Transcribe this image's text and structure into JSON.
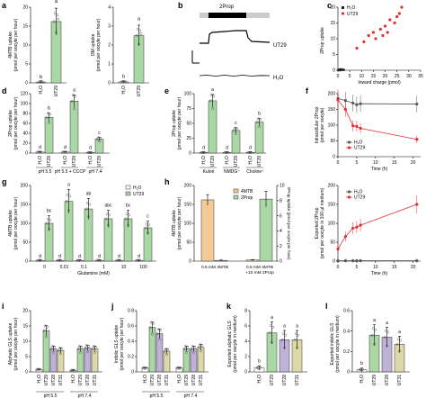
{
  "colors": {
    "h2o": "#ffffff",
    "ut29": "#a9d8a4",
    "ut31": "#ddd8a8",
    "ut28": "#bfb2d8",
    "mtb": "#f3c996",
    "prop": "#a9d8a4",
    "red": "#e03030",
    "grey": "#555555",
    "edge": "#333333"
  },
  "panels": {
    "a": {
      "letter": "a",
      "ylabel1": "4MTB uptake",
      "ylabel2": "(pmol per oocyte per hour)",
      "yticks": [
        "0",
        "5",
        "10",
        "15",
        "20"
      ],
      "xlabels": [
        "H₂O",
        "UT29"
      ],
      "sig": [
        "b",
        "a"
      ]
    },
    "a2": {
      "ylabel1": "I3M uptake",
      "ylabel2": "(pmol per oocyte per hour)",
      "yticks": [
        "0",
        "1",
        "2",
        "3",
        "4"
      ],
      "xlabels": [
        "H₂O",
        "UT29"
      ],
      "sig": [
        "b",
        "a"
      ]
    },
    "b": {
      "letter": "b",
      "stim": "2Prop",
      "trace1": "UT29",
      "trace2": "H₂O"
    },
    "c": {
      "letter": "c",
      "ylabel": "2Prop uptake",
      "xlabel": "Inward charge (pmol)",
      "yticks": [
        "0",
        "5",
        "10",
        "15",
        "20"
      ],
      "xticks": [
        "0",
        "5",
        "10",
        "15",
        "20",
        "25",
        "30",
        "35"
      ],
      "legend": [
        "H₂O",
        "UT29"
      ]
    },
    "d": {
      "letter": "d",
      "ylabel1": "2Prop uptake",
      "ylabel2": "(pmol per oocyte per hour)",
      "yticks": [
        "0",
        "20",
        "40",
        "60",
        "80",
        "100",
        "120"
      ],
      "groups": [
        "pH 5.5",
        "pH 5.5 +\nCCCP",
        "pH 7.4"
      ],
      "sig": [
        "d",
        "b",
        "d",
        "a",
        "d",
        "c"
      ]
    },
    "e": {
      "letter": "e",
      "ylabel1": "2Prop uptake",
      "ylabel2": "(pmol per oocyte per hour)",
      "yticks": [
        "0",
        "25",
        "50",
        "75",
        "100"
      ],
      "groups": [
        "Kulori",
        "NMDG⁺",
        "Choline⁺"
      ],
      "sig": [
        "d",
        "a",
        "d",
        "c",
        "d",
        "b"
      ]
    },
    "f": {
      "letter": "f",
      "ylabel1": "Intracellular 2Prop",
      "ylabel2": "(pmol per oocyte)",
      "xlabel": "Time (h)",
      "yticks": [
        "0",
        "50",
        "100",
        "150",
        "200"
      ],
      "xticks": [
        "0",
        "5",
        "10",
        "15",
        "20"
      ],
      "legend": [
        "H₂O",
        "UT29"
      ]
    },
    "g": {
      "letter": "g",
      "ylabel1": "4MTB uptake",
      "ylabel2": "(pmol per oocyte per hour)",
      "xlabel": "Glutamine (mM)",
      "yticks": [
        "0",
        "50",
        "100",
        "150",
        "200"
      ],
      "xticks": [
        "0",
        "0.01",
        "0.1",
        "1",
        "10",
        "100"
      ],
      "legend": [
        "H₂O",
        "UT29"
      ],
      "sig_top": [
        "bc",
        "a",
        "ab",
        "abc",
        "bc",
        "c"
      ],
      "sig_bot": [
        "d",
        "d",
        "d",
        "d",
        "d",
        "d"
      ]
    },
    "h": {
      "letter": "h",
      "ylabel1": "4MTB uptake",
      "ylabel2": "(pmol per oocyte per hour)",
      "ylabel_r": "2Prop uptake (pmol per oocyte per hour)",
      "yticks": [
        "0",
        "50",
        "100",
        "150",
        "200"
      ],
      "yticks_r": [
        "0",
        "2",
        "4",
        "6",
        "8",
        "10"
      ],
      "groups": [
        "0.5 mM 4MTB",
        "0.5 mM 4MTB\n+10 mM 2Prop"
      ],
      "legend": [
        "4MTB",
        "2Prop"
      ]
    },
    "h2": {
      "ylabel1": "Exported 2Prop",
      "ylabel2": "(pmol per oocyte in 100 µl medium)",
      "xlabel": "Time (h)",
      "yticks": [
        "0",
        "50",
        "100",
        "150",
        "200"
      ],
      "xticks": [
        "0",
        "5",
        "10",
        "15",
        "20"
      ],
      "legend": [
        "H₂O",
        "UT29"
      ]
    },
    "i": {
      "letter": "i",
      "ylabel1": "Aliphatic GLS uptake",
      "ylabel2": "(pmol per oocyte per hour)",
      "yticks": [
        "0",
        "5",
        "10",
        "15",
        "20"
      ],
      "groups": [
        "pH 5.5",
        "pH 7.4"
      ],
      "xlabels": [
        "H₂O",
        "UT29",
        "UT28",
        "UT31"
      ]
    },
    "j": {
      "letter": "j",
      "ylabel1": "Indolic GLS uptake",
      "ylabel2": "(pmol per oocyte per hour)",
      "yticks": [
        "0",
        "0.2",
        "0.4",
        "0.6",
        "0.8"
      ],
      "groups": [
        "pH 5.5",
        "pH 7.4"
      ],
      "xlabels": [
        "H₂O",
        "UT29",
        "UT28",
        "UT31"
      ]
    },
    "k": {
      "letter": "k",
      "ylabel1": "Exported aliphatic GLS",
      "ylabel2": "(pmol per oocyte in medium)",
      "yticks": [
        "0",
        "2",
        "4",
        "6",
        "8"
      ],
      "xlabels": [
        "H₂O",
        "UT29",
        "UT28",
        "UT31"
      ],
      "sig": [
        "b",
        "a",
        "a",
        "a"
      ]
    },
    "l": {
      "letter": "l",
      "ylabel1": "Exported indolic GLS",
      "ylabel2": "(pmol per oocyte in medium)",
      "yticks": [
        "0",
        "0.2",
        "0.4",
        "0.6"
      ],
      "xlabels": [
        "H₂O",
        "UT29",
        "UT28",
        "UT31"
      ],
      "sig": [
        "b",
        "a",
        "a",
        "a"
      ]
    }
  },
  "chart_data": [
    {
      "panel": "a",
      "type": "bar",
      "categories": [
        "H₂O",
        "UT29"
      ],
      "values": [
        0.2,
        16.2
      ],
      "ylim": [
        0,
        20
      ]
    },
    {
      "panel": "a2",
      "type": "bar",
      "categories": [
        "H₂O",
        "UT29"
      ],
      "values": [
        0.05,
        2.5
      ],
      "ylim": [
        0,
        4
      ]
    },
    {
      "panel": "c",
      "type": "scatter",
      "xlabel": "Inward charge (pmol)",
      "ylabel": "2Prop uptake",
      "xlim": [
        0,
        35
      ],
      "ylim": [
        0,
        20
      ],
      "series": [
        {
          "name": "H₂O",
          "x": [
            0.2,
            0.5,
            0.8,
            1.2,
            1.6,
            2.0,
            2.5
          ],
          "y": [
            0.1,
            0.2,
            0.0,
            0.3,
            0.1,
            0.2,
            0.1
          ]
        },
        {
          "name": "UT29",
          "x": [
            8,
            11,
            13,
            15,
            16,
            18,
            19,
            20,
            21,
            22,
            24,
            25,
            26,
            27
          ],
          "y": [
            7,
            9,
            11,
            12,
            10,
            13,
            11,
            14,
            12,
            16,
            15,
            17,
            18,
            20
          ]
        }
      ]
    },
    {
      "panel": "d",
      "type": "bar",
      "categories": [
        "pH 5.5",
        "pH 5.5 + CCCP",
        "pH 7.4"
      ],
      "series": [
        {
          "name": "H₂O",
          "values": [
            2,
            2,
            1
          ]
        },
        {
          "name": "UT29",
          "values": [
            72,
            105,
            28
          ]
        }
      ],
      "ylim": [
        0,
        120
      ]
    },
    {
      "panel": "e",
      "type": "bar",
      "categories": [
        "Kulori",
        "NMDG⁺",
        "Choline⁺"
      ],
      "series": [
        {
          "name": "H₂O",
          "values": [
            1,
            1,
            1
          ]
        },
        {
          "name": "UT29",
          "values": [
            88,
            38,
            52
          ]
        }
      ],
      "ylim": [
        0,
        100
      ]
    },
    {
      "panel": "f",
      "type": "line",
      "xlabel": "Time (h)",
      "xlim": [
        0,
        22
      ],
      "ylim": [
        0,
        200
      ],
      "series": [
        {
          "name": "H₂O",
          "x": [
            0,
            2,
            4,
            5,
            6,
            21
          ],
          "y": [
            185,
            178,
            170,
            165,
            168,
            167
          ]
        },
        {
          "name": "UT29",
          "x": [
            0,
            2,
            4,
            5,
            6,
            21
          ],
          "y": [
            180,
            150,
            98,
            96,
            90,
            55
          ]
        }
      ]
    },
    {
      "panel": "g",
      "type": "bar",
      "xlabel": "Glutamine (mM)",
      "categories": [
        "0",
        "0.01",
        "0.1",
        "1",
        "10",
        "100"
      ],
      "series": [
        {
          "name": "H₂O",
          "values": [
            2,
            2,
            2,
            2,
            2,
            2
          ]
        },
        {
          "name": "UT29",
          "values": [
            100,
            158,
            138,
            112,
            112,
            88
          ]
        }
      ],
      "ylim": [
        0,
        200
      ]
    },
    {
      "panel": "h",
      "type": "bar",
      "categories": [
        "0.5 mM 4MTB",
        "0.5 mM 4MTB +10 mM 2Prop"
      ],
      "series": [
        {
          "name": "4MTB",
          "values": [
            162,
            3
          ]
        },
        {
          "name": "2Prop",
          "values": [
            0.1,
            8.2
          ]
        }
      ],
      "ylim": [
        0,
        200
      ],
      "ylim_right": [
        0,
        10
      ]
    },
    {
      "panel": "h2",
      "type": "line",
      "xlabel": "Time (h)",
      "xlim": [
        0,
        22
      ],
      "ylim": [
        0,
        200
      ],
      "series": [
        {
          "name": "H₂O",
          "x": [
            0,
            2,
            4,
            5,
            6,
            21
          ],
          "y": [
            1,
            1,
            1,
            1,
            1,
            1
          ]
        },
        {
          "name": "UT29",
          "x": [
            0,
            2,
            4,
            5,
            6,
            21
          ],
          "y": [
            32,
            65,
            87,
            90,
            95,
            150
          ]
        }
      ]
    },
    {
      "panel": "i",
      "type": "bar",
      "categories": [
        "pH 5.5",
        "pH 7.4"
      ],
      "series": [
        {
          "name": "H₂O",
          "values": [
            0.8,
            0.5
          ]
        },
        {
          "name": "UT29",
          "values": [
            13.5,
            7.5
          ]
        },
        {
          "name": "UT28",
          "values": [
            7.5,
            7.8
          ]
        },
        {
          "name": "UT31",
          "values": [
            7.0,
            7.5
          ]
        }
      ],
      "ylim": [
        0,
        20
      ]
    },
    {
      "panel": "j",
      "type": "bar",
      "categories": [
        "pH 5.5",
        "pH 7.4"
      ],
      "series": [
        {
          "name": "H₂O",
          "values": [
            0.05,
            0.05
          ]
        },
        {
          "name": "UT29",
          "values": [
            0.58,
            0.3
          ]
        },
        {
          "name": "UT28",
          "values": [
            0.5,
            0.3
          ]
        },
        {
          "name": "UT31",
          "values": [
            0.27,
            0.32
          ]
        }
      ],
      "ylim": [
        0,
        0.8
      ]
    },
    {
      "panel": "k",
      "type": "bar",
      "categories": [
        "H₂O",
        "UT29",
        "UT28",
        "UT31"
      ],
      "values": [
        0.5,
        5.1,
        4.2,
        4.2
      ],
      "ylim": [
        0,
        8
      ]
    },
    {
      "panel": "l",
      "type": "bar",
      "categories": [
        "H₂O",
        "UT29",
        "UT28",
        "UT31"
      ],
      "values": [
        0.02,
        0.36,
        0.34,
        0.27
      ],
      "ylim": [
        0,
        0.6
      ]
    }
  ]
}
